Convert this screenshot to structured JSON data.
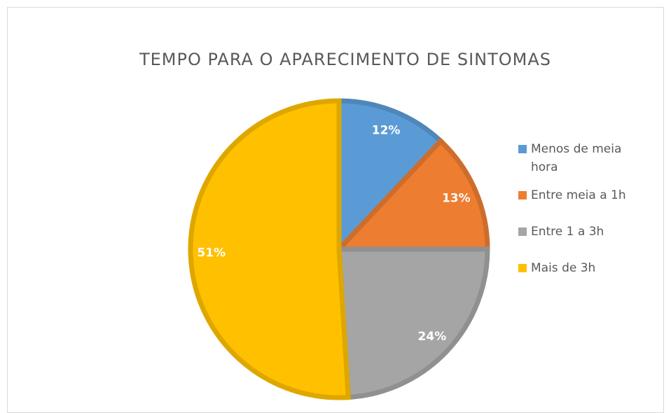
{
  "chart_data": {
    "type": "pie",
    "title": "TEMPO PARA O APARECIMENTO DE SINTOMAS",
    "categories": [
      "Menos de meia hora",
      "Entre meia a 1h",
      "Entre 1 a 3h",
      "Mais de 3h"
    ],
    "values": [
      12,
      13,
      24,
      51
    ],
    "value_labels": [
      "12%",
      "13%",
      "24%",
      "51%"
    ],
    "colors": [
      "#5b9bd5",
      "#ed7d31",
      "#a5a5a5",
      "#ffc000"
    ],
    "legend": "right"
  }
}
